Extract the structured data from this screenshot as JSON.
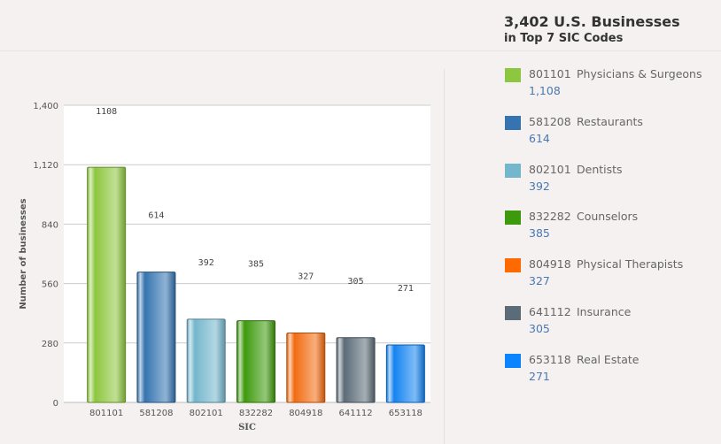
{
  "header": {
    "title": "3,402 U.S. Businesses",
    "subtitle": "in Top 7 SIC Codes"
  },
  "chart_data": {
    "type": "bar",
    "categories": [
      "801101",
      "581208",
      "802101",
      "832282",
      "804918",
      "641112",
      "653118"
    ],
    "values": [
      1108,
      614,
      392,
      385,
      327,
      305,
      271
    ],
    "data_labels": [
      "1108",
      "614",
      "392",
      "385",
      "327",
      "305",
      "271"
    ],
    "colors": [
      "#8dc63f",
      "#3574b0",
      "#74b6cc",
      "#3d9a0c",
      "#f26b10",
      "#5b6b77",
      "#1483f0"
    ],
    "xlabel": "SIC",
    "ylabel": "Number of businesses",
    "ylim": [
      0,
      1400
    ],
    "yticks": [
      0,
      280,
      560,
      840,
      1120,
      1400
    ],
    "ytick_labels": [
      "0",
      "280",
      "560",
      "840",
      "1,120",
      "1,400"
    ],
    "grid": true,
    "legend": "right"
  },
  "legend": [
    {
      "code": "801101",
      "name": "Physicians & Surgeons",
      "value": "1,108",
      "color": "#8dc63f"
    },
    {
      "code": "581208",
      "name": "Restaurants",
      "value": "614",
      "color": "#3574b0"
    },
    {
      "code": "802101",
      "name": "Dentists",
      "value": "392",
      "color": "#74b6cc"
    },
    {
      "code": "832282",
      "name": "Counselors",
      "value": "385",
      "color": "#3d9a0c"
    },
    {
      "code": "804918",
      "name": "Physical Therapists",
      "value": "327",
      "color": "#ff6a00"
    },
    {
      "code": "641112",
      "name": "Insurance",
      "value": "305",
      "color": "#5b6b77"
    },
    {
      "code": "653118",
      "name": "Real Estate",
      "value": "271",
      "color": "#0a84ff"
    }
  ]
}
